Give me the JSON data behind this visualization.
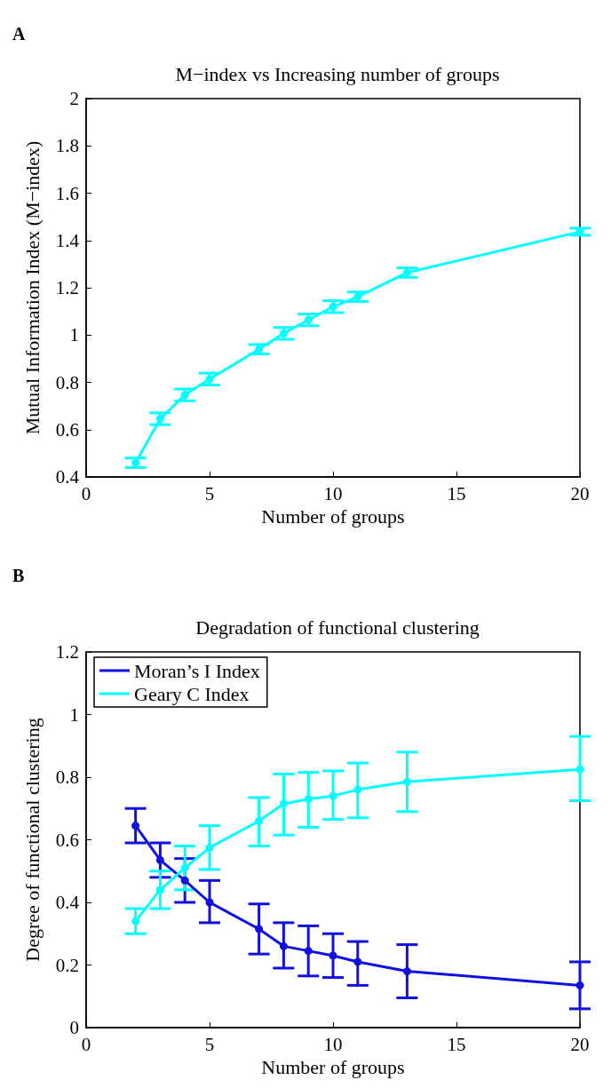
{
  "chart_data": [
    {
      "type": "line",
      "title": "M−index vs Increasing number of groups",
      "xlabel": "Number of groups",
      "ylabel": "Mutual Information Index (M−index)",
      "annotations": [
        "A"
      ],
      "x": [
        2,
        3,
        4,
        5,
        7,
        8,
        9,
        10,
        11,
        13,
        20
      ],
      "series": [
        {
          "color": "#00ffff",
          "values": [
            0.46,
            0.646,
            0.747,
            0.814,
            0.94,
            1.007,
            1.064,
            1.12,
            1.162,
            1.264,
            1.437
          ],
          "errors": [
            0.02,
            0.025,
            0.025,
            0.025,
            0.02,
            0.025,
            0.025,
            0.025,
            0.02,
            0.02,
            0.015
          ]
        }
      ],
      "xlim": [
        0,
        20
      ],
      "xticks": [
        0,
        5,
        10,
        15,
        20
      ],
      "ylim": [
        0.4,
        2
      ],
      "yticks": [
        0.4,
        0.6,
        0.8,
        1,
        1.2,
        1.4,
        1.6,
        1.8,
        2
      ],
      "grid": false,
      "legend": false,
      "marker": "circle",
      "line_style": "solid"
    },
    {
      "type": "line",
      "title": "Degradation of functional clustering",
      "xlabel": "Number of groups",
      "ylabel": "Degree of functional clustering",
      "annotations": [
        "B"
      ],
      "x": [
        2,
        3,
        4,
        5,
        7,
        8,
        9,
        10,
        11,
        13,
        20
      ],
      "series": [
        {
          "name": "Moran’s I Index",
          "color": "#1010e0",
          "values": [
            0.645,
            0.535,
            0.47,
            0.4,
            0.315,
            0.26,
            0.245,
            0.23,
            0.21,
            0.18,
            0.135
          ],
          "errors": [
            [
              0.59,
              0.7
            ],
            [
              0.48,
              0.59
            ],
            [
              0.4,
              0.54
            ],
            [
              0.335,
              0.47
            ],
            [
              0.235,
              0.395
            ],
            [
              0.19,
              0.335
            ],
            [
              0.165,
              0.325
            ],
            [
              0.16,
              0.3
            ],
            [
              0.135,
              0.275
            ],
            [
              0.095,
              0.265
            ],
            [
              0.06,
              0.21
            ]
          ]
        },
        {
          "name": "Geary C Index",
          "color": "#00ffff",
          "values": [
            0.34,
            0.44,
            0.51,
            0.575,
            0.66,
            0.715,
            0.73,
            0.74,
            0.76,
            0.785,
            0.825
          ],
          "errors": [
            [
              0.3,
              0.38
            ],
            [
              0.38,
              0.5
            ],
            [
              0.44,
              0.58
            ],
            [
              0.505,
              0.645
            ],
            [
              0.58,
              0.735
            ],
            [
              0.615,
              0.81
            ],
            [
              0.64,
              0.815
            ],
            [
              0.665,
              0.82
            ],
            [
              0.67,
              0.845
            ],
            [
              0.69,
              0.88
            ],
            [
              0.725,
              0.93
            ]
          ]
        }
      ],
      "xlim": [
        0,
        20
      ],
      "xticks": [
        0,
        5,
        10,
        15,
        20
      ],
      "ylim": [
        0,
        1.2
      ],
      "yticks": [
        0,
        0.2,
        0.4,
        0.6,
        0.8,
        1,
        1.2
      ],
      "grid": false,
      "legend": "top left",
      "marker": "circle",
      "line_style": "solid"
    }
  ]
}
